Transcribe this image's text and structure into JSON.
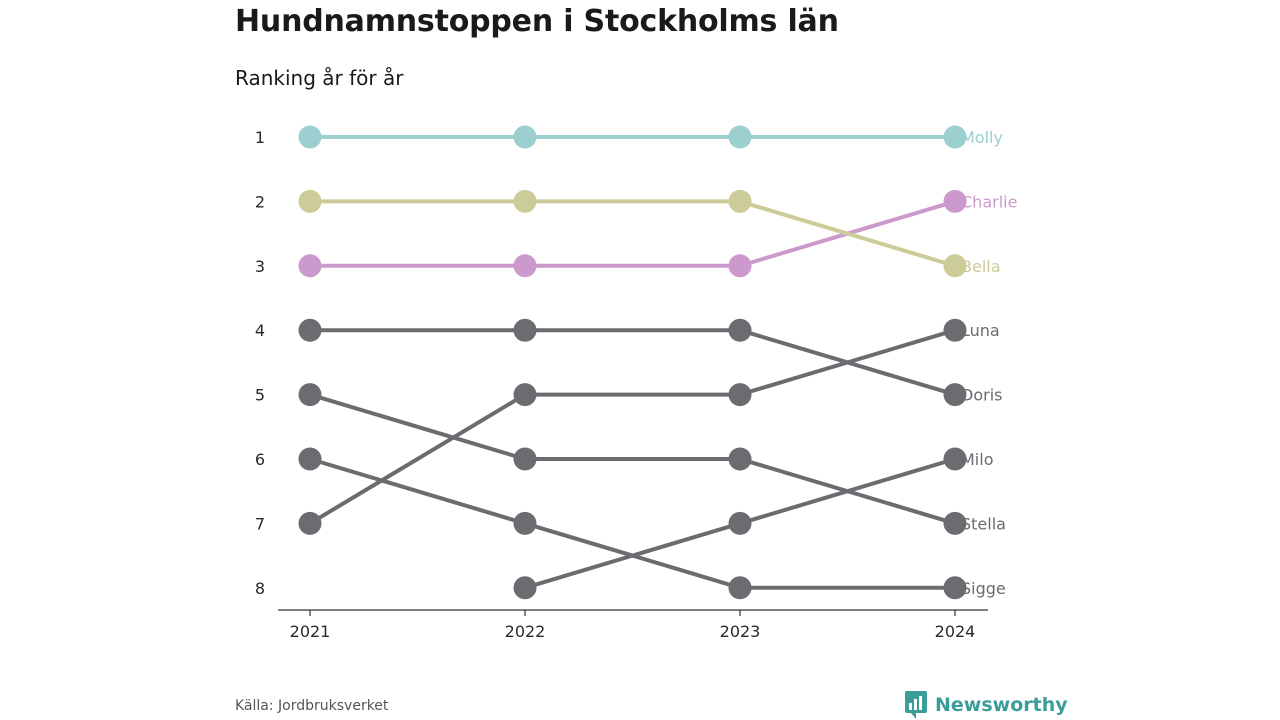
{
  "header": {
    "title": "Hundnamnstoppen i Stockholms län",
    "subtitle": "Ranking år för år"
  },
  "footer": {
    "source": "Källa: Jordbruksverket",
    "brand": "Newsworthy"
  },
  "colors": {
    "Molly": "#9ccfcf",
    "Bella": "#cccc99",
    "Charlie": "#cc99cc",
    "default": "#6b6b70",
    "axis": "#333333",
    "brand": "#3a9d9a"
  },
  "chart_data": {
    "type": "line",
    "title": "Hundnamnstoppen i Stockholms län",
    "subtitle": "Ranking år för år",
    "x": [
      "2021",
      "2022",
      "2023",
      "2024"
    ],
    "y_ticks": [
      1,
      2,
      3,
      4,
      5,
      6,
      7,
      8
    ],
    "y_inverted": true,
    "ylim": [
      1,
      8
    ],
    "series": [
      {
        "name": "Molly",
        "values": [
          1,
          1,
          1,
          1
        ]
      },
      {
        "name": "Charlie",
        "values": [
          3,
          3,
          3,
          2
        ]
      },
      {
        "name": "Bella",
        "values": [
          2,
          2,
          2,
          3
        ]
      },
      {
        "name": "Luna",
        "values": [
          7,
          5,
          5,
          4
        ]
      },
      {
        "name": "Doris",
        "values": [
          4,
          4,
          4,
          5
        ]
      },
      {
        "name": "Milo",
        "values": [
          null,
          8,
          7,
          6
        ]
      },
      {
        "name": "Stella",
        "values": [
          5,
          6,
          6,
          7
        ]
      },
      {
        "name": "Sigge",
        "values": [
          6,
          7,
          8,
          8
        ]
      }
    ]
  }
}
